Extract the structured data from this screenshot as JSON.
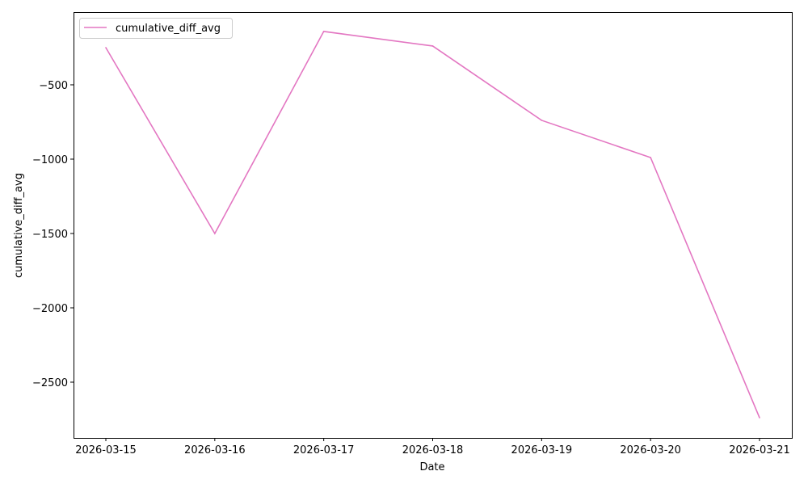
{
  "chart_data": {
    "type": "line",
    "title": "",
    "xlabel": "Date",
    "ylabel": "cumulative_diff_avg",
    "categories": [
      "2026-03-15",
      "2026-03-16",
      "2026-03-17",
      "2026-03-18",
      "2026-03-19",
      "2026-03-20",
      "2026-03-21"
    ],
    "series": [
      {
        "name": "cumulative_diff_avg",
        "color": "#e377c2",
        "values": [
          -250,
          -1500,
          -141,
          -239,
          -739,
          -989,
          -2739
        ]
      }
    ],
    "yticks": [
      -500,
      -1000,
      -1500,
      -2000,
      -2500
    ],
    "ytick_labels": [
      "−500",
      "−1000",
      "−1500",
      "−2000",
      "−2500"
    ],
    "ylim": [
      -2875,
      -11
    ],
    "grid": false,
    "legend": "top-left"
  }
}
